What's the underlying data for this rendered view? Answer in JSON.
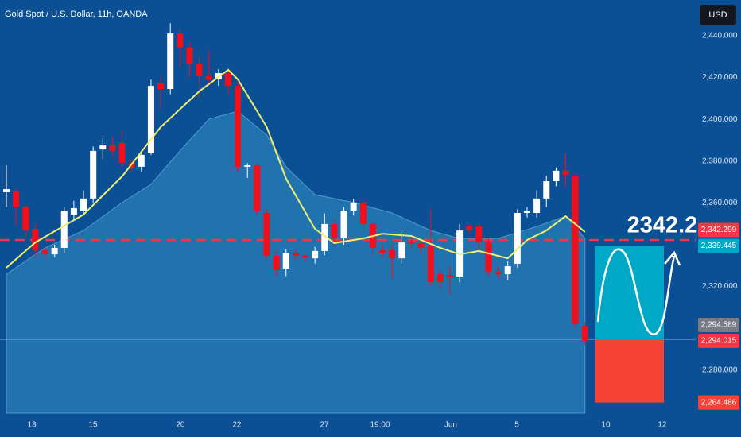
{
  "chart_data": {
    "type": "candlestick",
    "title": "Gold Spot / U.S. Dollar, 11h, OANDA",
    "currency": "USD",
    "annotation": "2342.2",
    "xlim": [
      -0.66,
      71.48
    ],
    "xticks": [
      {
        "value": 2.64,
        "label": "13"
      },
      {
        "value": 8.99,
        "label": "15"
      },
      {
        "value": 18.05,
        "label": "20"
      },
      {
        "value": 23.9,
        "label": "22"
      },
      {
        "value": 32.98,
        "label": "27"
      },
      {
        "value": 38.75,
        "label": "19:00"
      },
      {
        "value": 46.08,
        "label": "Jun"
      },
      {
        "value": 52.93,
        "label": "5"
      },
      {
        "value": 62.16,
        "label": "10"
      },
      {
        "value": 68.01,
        "label": "12"
      }
    ],
    "ylim": [
      2259.4,
      2457.1
    ],
    "yticks": [
      {
        "value": 2440,
        "label": "2,440.000"
      },
      {
        "value": 2420,
        "label": "2,420.000"
      },
      {
        "value": 2400,
        "label": "2,400.000"
      },
      {
        "value": 2380,
        "label": "2,380.000"
      },
      {
        "value": 2360,
        "label": "2,360.000"
      },
      {
        "value": 2320,
        "label": "2,320.000"
      },
      {
        "value": 2280,
        "label": "2,280.000"
      }
    ],
    "up_color": "#ffffff",
    "down_color": "#f00f1a",
    "open": [
      2365.1,
      2365.9,
      2358.3,
      2347.6,
      2337.3,
      2335.4,
      2338.5,
      2354.4,
      2356.3,
      2362.1,
      2385.6,
      2387.9,
      2388.7,
      2379.2,
      2377.3,
      2384.1,
      2417.2,
      2414.5,
      2441.1,
      2434.3,
      2426.7,
      2420.6,
      2419.1,
      2422.1,
      2416.0,
      2377.3,
      2378.0,
      2355.2,
      2334.7,
      2328.6,
      2336.2,
      2334.7,
      2333.5,
      2337.0,
      2349.9,
      2343.0,
      2356.3,
      2360.2,
      2349.9,
      2337.3,
      2337.3,
      2333.5,
      2341.1,
      2340.8,
      2339.2,
      2325.9,
      2325.5,
      2324.8,
      2348.7,
      2348.7,
      2341.1,
      2327.1,
      2325.9,
      2330.9,
      2355.2,
      2355.2,
      2362.1,
      2370.4,
      2375.4,
      2372.7,
      2301.2
    ],
    "high": [
      2378,
      2367,
      2359,
      2350,
      2339,
      2340,
      2358,
      2361,
      2366,
      2387,
      2391,
      2392,
      2395,
      2381,
      2385,
      2419,
      2420,
      2446,
      2443,
      2437,
      2430,
      2433,
      2424,
      2424,
      2418,
      2379,
      2379,
      2357,
      2337,
      2338,
      2338,
      2336,
      2339,
      2355,
      2352,
      2358,
      2362,
      2361,
      2351,
      2340,
      2340,
      2346,
      2343,
      2342,
      2357,
      2328,
      2330,
      2350,
      2350,
      2350,
      2343,
      2330,
      2332,
      2357,
      2358,
      2366,
      2373,
      2377,
      2384,
      2374,
      2303
    ],
    "low": [
      2358,
      2349,
      2344,
      2334,
      2333,
      2334,
      2336,
      2352,
      2354,
      2360,
      2381,
      2382,
      2377,
      2375,
      2375,
      2383,
      2405,
      2412,
      2425,
      2420,
      2410,
      2416,
      2416,
      2412,
      2375,
      2372,
      2354,
      2333,
      2325,
      2325,
      2333,
      2332,
      2331,
      2335,
      2340,
      2340,
      2354,
      2347,
      2335,
      2334,
      2324,
      2331,
      2338,
      2336,
      2320,
      2319,
      2316,
      2322,
      2345,
      2338,
      2325,
      2324,
      2323,
      2329,
      2353,
      2353,
      2358,
      2368,
      2368,
      2300,
      2292
    ],
    "close": [
      2366.6,
      2358.3,
      2346.8,
      2337.3,
      2335.4,
      2338.5,
      2356.3,
      2357.5,
      2362.1,
      2384.9,
      2387.5,
      2384.9,
      2379.2,
      2376.5,
      2383.0,
      2416.0,
      2414.5,
      2441.1,
      2434.3,
      2426.7,
      2420.6,
      2419.1,
      2422.1,
      2416.0,
      2377.3,
      2378.0,
      2356.3,
      2334.7,
      2327.8,
      2336.2,
      2334.7,
      2333.9,
      2337.0,
      2349.9,
      2343.0,
      2356.3,
      2360.2,
      2349.9,
      2338.5,
      2336.2,
      2333.5,
      2341.1,
      2340.8,
      2338.5,
      2322.1,
      2322.1,
      2324.8,
      2346.8,
      2346.8,
      2341.1,
      2327.1,
      2325.9,
      2329.7,
      2355.2,
      2356.0,
      2362.1,
      2370.4,
      2375.4,
      2373.5,
      2302.0,
      2294.0
    ],
    "ma": {
      "color": "#f0ee6e",
      "x": [
        0,
        3,
        8,
        12,
        16,
        20,
        23,
        24,
        27,
        29,
        32,
        34,
        37,
        39,
        42,
        45,
        47,
        49,
        52,
        54,
        56,
        58,
        60
      ],
      "values": [
        2329.0,
        2341.1,
        2354.4,
        2372.7,
        2396.3,
        2413.4,
        2423.7,
        2419.1,
        2396.3,
        2371.6,
        2347.6,
        2340.8,
        2343.0,
        2345.3,
        2344.2,
        2338.5,
        2335.4,
        2337.0,
        2333.5,
        2342.3,
        2346.8,
        2353.7,
        2346.1
      ]
    },
    "area": {
      "color": "#3b9fd0",
      "x": [
        0,
        4,
        8,
        12,
        15,
        18,
        21,
        24,
        27,
        29,
        32,
        36,
        40,
        44,
        47,
        51,
        55,
        58,
        60
      ],
      "values": [
        2325.9,
        2338.5,
        2346.8,
        2360.2,
        2368.9,
        2384.9,
        2400.1,
        2403.9,
        2392.5,
        2377.3,
        2364.0,
        2360.2,
        2355.2,
        2346.8,
        2343.0,
        2343.0,
        2348.7,
        2353.7,
        2343.0
      ]
    },
    "price_labels": [
      {
        "value": 2342.299,
        "label": "2,342.299",
        "color": "#f23645"
      },
      {
        "value": 2339.445,
        "label": "2,339.445",
        "color": "#00a8c8"
      },
      {
        "value": 2294.589,
        "label": "2,294.589",
        "color": "#787b86"
      },
      {
        "value": 2294.015,
        "label": "2,294.015",
        "color": "#f23645"
      },
      {
        "value": 2264.486,
        "label": "2,264.486",
        "color": "#f44336"
      }
    ]
  }
}
